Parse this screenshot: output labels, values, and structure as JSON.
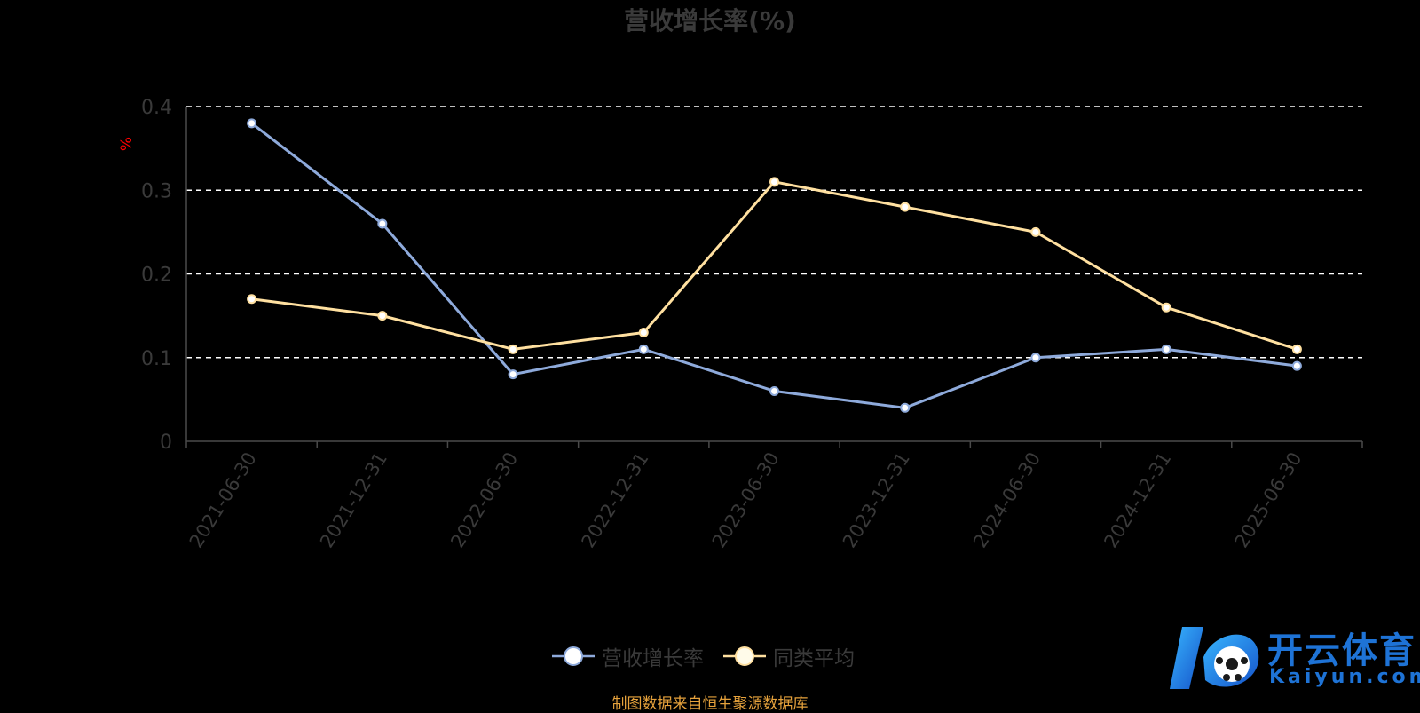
{
  "chart_data": {
    "type": "line",
    "title": "营收增长率(%)",
    "ylabel": "%",
    "ylim": [
      0,
      0.4
    ],
    "yticks": [
      "0",
      "0.1",
      "0.2",
      "0.3",
      "0.4"
    ],
    "grid": true,
    "legend_position": "bottom",
    "categories": [
      "2021-06-30",
      "2021-12-31",
      "2022-06-30",
      "2022-12-31",
      "2023-06-30",
      "2023-12-31",
      "2024-06-30",
      "2024-12-31",
      "2025-06-30"
    ],
    "series": [
      {
        "name": "营收增长率",
        "color": "#8eaadb",
        "values": [
          0.38,
          0.26,
          0.08,
          0.11,
          0.06,
          0.04,
          0.1,
          0.11,
          0.09
        ]
      },
      {
        "name": "同类平均",
        "color": "#ffe0a0",
        "values": [
          0.17,
          0.15,
          0.11,
          0.13,
          0.31,
          0.28,
          0.25,
          0.16,
          0.11
        ]
      }
    ]
  },
  "source_text": "制图数据来自恒生聚源数据库",
  "watermark": {
    "cn": "开云体育",
    "en": "Kaiyun.com"
  },
  "colors": {
    "axis_text": "#3a3a3a",
    "ylabel": "#ff0000",
    "source": "#e6a23c",
    "logo": "#1e73d6"
  }
}
